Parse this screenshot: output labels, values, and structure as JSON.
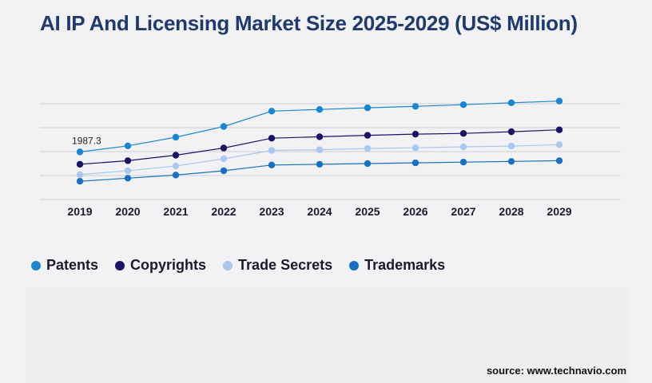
{
  "title": "AI IP And Licensing Market Size 2025-2029 (US$ Million)",
  "source": "source: www.technavio.com",
  "chart_data": {
    "type": "line",
    "title": "AI IP And Licensing Market Size 2025-2029 (US$ Million)",
    "xlabel": "",
    "ylabel": "",
    "x": [
      "2019",
      "2020",
      "2021",
      "2022",
      "2023",
      "2024",
      "2025",
      "2026",
      "2027",
      "2028",
      "2029"
    ],
    "ylim": [
      0,
      6000
    ],
    "grid": true,
    "legend_position": "bottom-left",
    "annotation": {
      "series": 0,
      "index": 0,
      "text": "1987.3"
    },
    "series": [
      {
        "name": "Patents",
        "color": "#1a86d0",
        "values": [
          1987.3,
          2240,
          2600,
          3050,
          3690,
          3760,
          3830,
          3890,
          3960,
          4040,
          4110
        ]
      },
      {
        "name": "Copyrights",
        "color": "#1b1466",
        "values": [
          1470,
          1620,
          1850,
          2150,
          2560,
          2620,
          2680,
          2730,
          2760,
          2830,
          2910
        ]
      },
      {
        "name": "Trade Secrets",
        "color": "#a8c8f0",
        "values": [
          1040,
          1200,
          1400,
          1700,
          2050,
          2080,
          2130,
          2160,
          2200,
          2230,
          2290
        ]
      },
      {
        "name": "Trademarks",
        "color": "#1a70c0",
        "values": [
          760,
          890,
          1020,
          1200,
          1440,
          1470,
          1500,
          1530,
          1560,
          1590,
          1620
        ]
      }
    ]
  }
}
